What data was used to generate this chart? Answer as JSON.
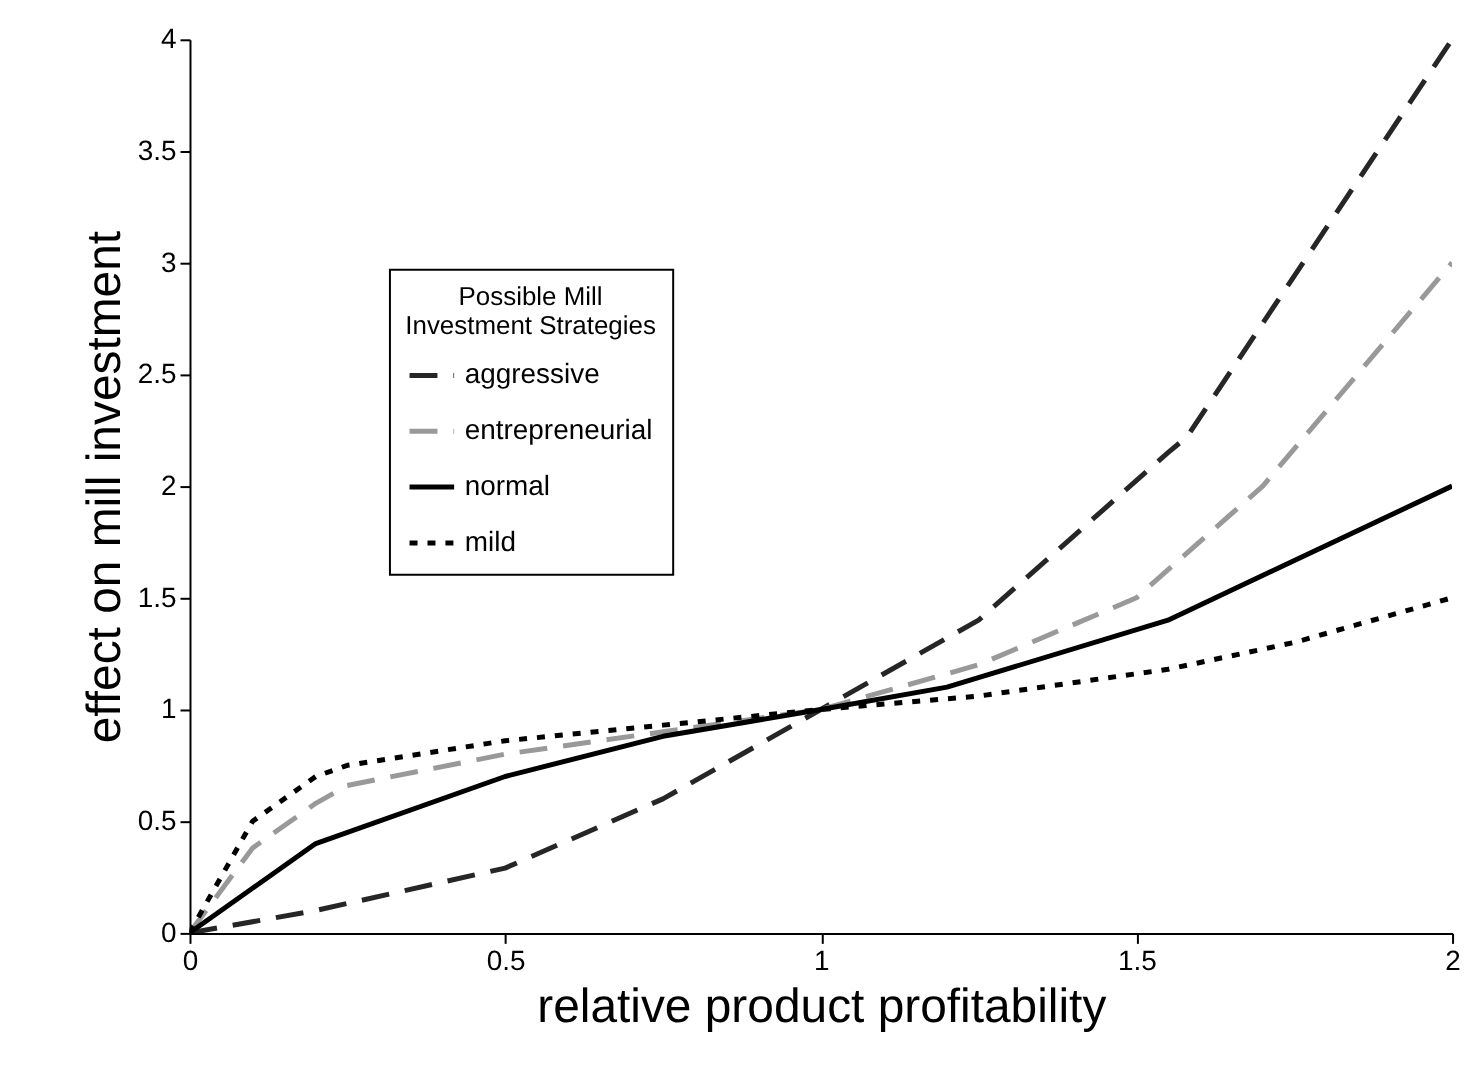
{
  "chart_data": {
    "type": "line",
    "xlabel": "relative product profitability",
    "ylabel": "effect on mill investment",
    "legend_title": "Possible Mill\nInvestment Strategies",
    "legend": "left",
    "grid": false,
    "marker": "none",
    "xlim": [
      0,
      2
    ],
    "xticks": [
      0,
      0.5,
      1,
      1.5,
      2
    ],
    "ylim": [
      0,
      4
    ],
    "yticks": [
      0,
      0.5,
      1,
      1.5,
      2,
      2.5,
      3,
      3.5,
      4
    ],
    "series": [
      {
        "name": "aggressive",
        "color": "#262626",
        "line_style": "dashed",
        "x": [
          0,
          0.2,
          0.5,
          0.75,
          1,
          1.25,
          1.55,
          1.58,
          2
        ],
        "values": [
          0,
          0.1,
          0.29,
          0.6,
          1,
          1.4,
          2.15,
          2.22,
          4
        ]
      },
      {
        "name": "entrepreneurial",
        "color": "#999999",
        "line_style": "dashed",
        "x": [
          0,
          0.1,
          0.2,
          0.25,
          0.5,
          0.75,
          1,
          1.25,
          1.5,
          1.7,
          2
        ],
        "values": [
          0,
          0.38,
          0.58,
          0.66,
          0.8,
          0.9,
          1,
          1.2,
          1.5,
          2.0,
          3
        ]
      },
      {
        "name": "normal",
        "color": "#000000",
        "line_style": "solid",
        "x": [
          0,
          0.2,
          0.5,
          0.75,
          1,
          1.2,
          1.55,
          2
        ],
        "values": [
          0,
          0.4,
          0.7,
          0.88,
          1,
          1.1,
          1.4,
          2
        ]
      },
      {
        "name": "mild",
        "color": "#000000",
        "line_style": "dotted",
        "x": [
          0,
          0.1,
          0.2,
          0.25,
          0.5,
          0.75,
          1,
          1.25,
          1.55,
          1.75,
          2
        ],
        "values": [
          0,
          0.5,
          0.7,
          0.75,
          0.86,
          0.93,
          1,
          1.06,
          1.18,
          1.3,
          1.5
        ]
      }
    ]
  }
}
